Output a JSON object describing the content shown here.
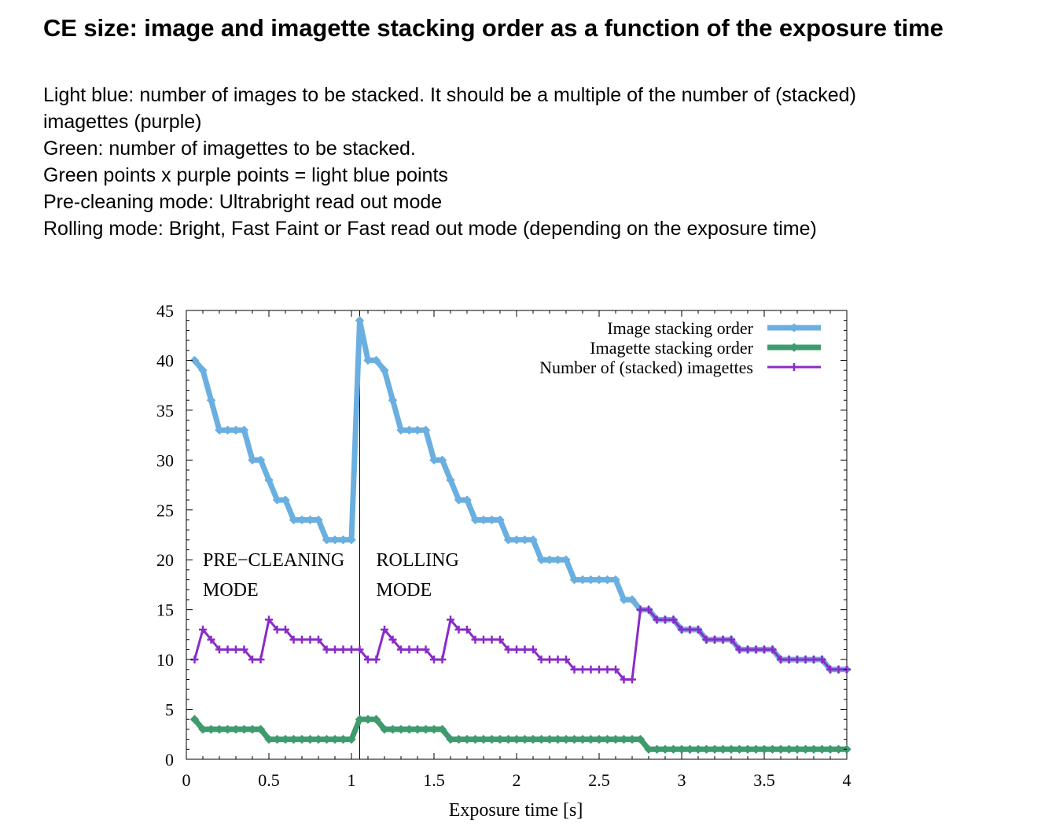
{
  "page": {
    "title": "CE size: image and imagette stacking order as a function of the exposure time",
    "description": [
      "Light blue: number of images to be stacked. It should be a multiple of the number of (stacked)",
      "imagettes (purple)",
      "Green: number of imagettes to be stacked.",
      "Green points x purple points = light blue points",
      "Pre-cleaning mode: Ultrabright read out mode",
      "Rolling mode: Bright, Fast Faint or Fast read out mode (depending on the exposure time)"
    ]
  },
  "chart_data": {
    "type": "line",
    "title": "",
    "xlabel": "Exposure time [s]",
    "ylabel": "",
    "xlim": [
      0,
      4
    ],
    "ylim": [
      0,
      45
    ],
    "xticks": [
      0,
      0.5,
      1,
      1.5,
      2,
      2.5,
      3,
      3.5,
      4
    ],
    "xtick_labels": [
      "0",
      "0.5",
      "1",
      "1.5",
      "2",
      "2.5",
      "3",
      "3.5",
      "4"
    ],
    "yticks": [
      0,
      5,
      10,
      15,
      20,
      25,
      30,
      35,
      40,
      45
    ],
    "ytick_labels": [
      "0",
      "5",
      "10",
      "15",
      "20",
      "25",
      "30",
      "35",
      "40",
      "45"
    ],
    "grid": false,
    "legend_position": "top-right",
    "mode_divider_x": 1.05,
    "annotations": [
      {
        "lines": [
          "PRE−CLEANING",
          "MODE"
        ],
        "x": 0.1,
        "y": 20
      },
      {
        "lines": [
          "ROLLING",
          "MODE"
        ],
        "x": 1.15,
        "y": 20
      }
    ],
    "x": [
      0.05,
      0.1,
      0.15,
      0.2,
      0.25,
      0.3,
      0.35,
      0.4,
      0.45,
      0.5,
      0.55,
      0.6,
      0.65,
      0.7,
      0.75,
      0.8,
      0.85,
      0.9,
      0.95,
      1.0,
      1.05,
      1.1,
      1.15,
      1.2,
      1.25,
      1.3,
      1.35,
      1.4,
      1.45,
      1.5,
      1.55,
      1.6,
      1.65,
      1.7,
      1.75,
      1.8,
      1.85,
      1.9,
      1.95,
      2.0,
      2.05,
      2.1,
      2.15,
      2.2,
      2.25,
      2.3,
      2.35,
      2.4,
      2.45,
      2.5,
      2.55,
      2.6,
      2.65,
      2.7,
      2.75,
      2.8,
      2.85,
      2.9,
      2.95,
      3.0,
      3.05,
      3.1,
      3.15,
      3.2,
      3.25,
      3.3,
      3.35,
      3.4,
      3.45,
      3.5,
      3.55,
      3.6,
      3.65,
      3.7,
      3.75,
      3.8,
      3.85,
      3.9,
      3.95,
      4.0
    ],
    "series": [
      {
        "name": "Image stacking order",
        "color": "#6aafe0",
        "marker": "diamond",
        "values": [
          40,
          39,
          36,
          33,
          33,
          33,
          33,
          30,
          30,
          28,
          26,
          26,
          24,
          24,
          24,
          24,
          22,
          22,
          22,
          22,
          44,
          40,
          40,
          39,
          36,
          33,
          33,
          33,
          33,
          30,
          30,
          28,
          26,
          26,
          24,
          24,
          24,
          24,
          22,
          22,
          22,
          22,
          20,
          20,
          20,
          20,
          18,
          18,
          18,
          18,
          18,
          18,
          16,
          16,
          15,
          15,
          14,
          14,
          14,
          13,
          13,
          13,
          12,
          12,
          12,
          12,
          11,
          11,
          11,
          11,
          11,
          10,
          10,
          10,
          10,
          10,
          10,
          9,
          9,
          9
        ]
      },
      {
        "name": "Imagette stacking order",
        "color": "#3e9b6e",
        "marker": "diamond",
        "values": [
          4,
          3,
          3,
          3,
          3,
          3,
          3,
          3,
          3,
          2,
          2,
          2,
          2,
          2,
          2,
          2,
          2,
          2,
          2,
          2,
          4,
          4,
          4,
          3,
          3,
          3,
          3,
          3,
          3,
          3,
          3,
          2,
          2,
          2,
          2,
          2,
          2,
          2,
          2,
          2,
          2,
          2,
          2,
          2,
          2,
          2,
          2,
          2,
          2,
          2,
          2,
          2,
          2,
          2,
          2,
          1,
          1,
          1,
          1,
          1,
          1,
          1,
          1,
          1,
          1,
          1,
          1,
          1,
          1,
          1,
          1,
          1,
          1,
          1,
          1,
          1,
          1,
          1,
          1,
          1
        ]
      },
      {
        "name": "Number of (stacked) imagettes",
        "color": "#8a2bc8",
        "marker": "plus",
        "values": [
          10,
          13,
          12,
          11,
          11,
          11,
          11,
          10,
          10,
          14,
          13,
          13,
          12,
          12,
          12,
          12,
          11,
          11,
          11,
          11,
          11,
          10,
          10,
          13,
          12,
          11,
          11,
          11,
          11,
          10,
          10,
          14,
          13,
          13,
          12,
          12,
          12,
          12,
          11,
          11,
          11,
          11,
          10,
          10,
          10,
          10,
          9,
          9,
          9,
          9,
          9,
          9,
          8,
          8,
          15,
          15,
          14,
          14,
          14,
          13,
          13,
          13,
          12,
          12,
          12,
          12,
          11,
          11,
          11,
          11,
          11,
          10,
          10,
          10,
          10,
          10,
          10,
          9,
          9,
          9
        ]
      }
    ]
  }
}
